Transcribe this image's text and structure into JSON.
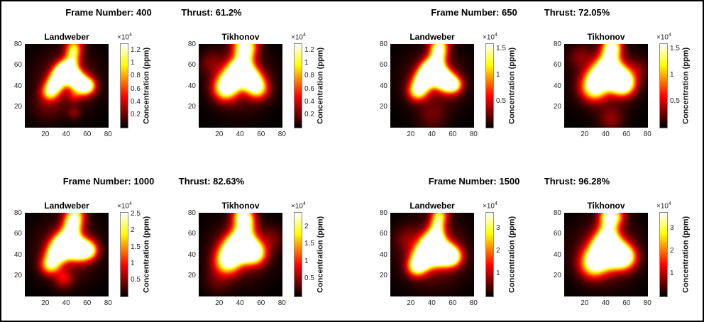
{
  "figure": {
    "background": "#ffffff",
    "border_color": "#000000",
    "tick_text_color": "#262626",
    "title_color": "#000000",
    "colorbar_edge_color": "#8a8a8a"
  },
  "chart_data": {
    "type": "heatmap",
    "colormap": "hot",
    "grid_size": 80,
    "axis_range": [
      0.5,
      80.5
    ],
    "x_ticks": [
      20,
      40,
      60,
      80
    ],
    "y_ticks": [
      20,
      40,
      60,
      80
    ],
    "colorbar_label": "Concentration (ppm)",
    "scale_prefix": "×10",
    "scale_exponent": "4",
    "panels": [
      {
        "frame_label": "Frame Number: 400",
        "thrust_label": "Thrust: 61.2%",
        "subplots": [
          {
            "title": "Landweber",
            "colorbar_ticks": [
              0.2,
              0.4,
              0.6,
              0.8,
              1,
              1.2
            ],
            "cmax": 1.3,
            "blobs": [
              [
                24,
                34,
                5.5,
                0.7
              ],
              [
                29,
                42,
                5.5,
                0.9
              ],
              [
                34,
                50,
                5.5,
                1.05
              ],
              [
                39,
                56,
                5.5,
                1.05
              ],
              [
                44,
                51,
                5.5,
                0.95
              ],
              [
                49,
                46,
                5.5,
                0.9
              ],
              [
                55,
                40,
                6,
                0.9
              ],
              [
                61,
                40,
                5,
                0.55
              ],
              [
                45,
                63,
                5,
                0.5
              ],
              [
                46,
                71,
                5,
                0.45
              ],
              [
                47,
                78,
                5.5,
                0.5
              ],
              [
                47,
                30,
                4,
                0.18
              ],
              [
                47,
                14,
                4,
                0.15
              ],
              [
                40,
                45,
                20,
                0.2
              ],
              [
                20,
                20,
                10,
                0.1
              ]
            ]
          },
          {
            "title": "Tikhonov",
            "colorbar_ticks": [
              0.2,
              0.4,
              0.6,
              0.8,
              1,
              1.2
            ],
            "cmax": 1.3,
            "blobs": [
              [
                25,
                37,
                7.5,
                0.8
              ],
              [
                31,
                45,
                7.5,
                0.95
              ],
              [
                38,
                55,
                7,
                1.05
              ],
              [
                45,
                50,
                7,
                0.95
              ],
              [
                51,
                44,
                7,
                0.85
              ],
              [
                57,
                37,
                6.5,
                0.6
              ],
              [
                43,
                64,
                6.5,
                0.5
              ],
              [
                44,
                73,
                6.5,
                0.5
              ],
              [
                41,
                80,
                7,
                0.45
              ],
              [
                48,
                79,
                6.5,
                0.4
              ],
              [
                42,
                40,
                6,
                -0.12
              ],
              [
                40,
                45,
                20,
                0.2
              ],
              [
                12,
                62,
                8,
                0.15
              ]
            ]
          }
        ]
      },
      {
        "frame_label": "Frame Number: 650",
        "thrust_label": "Thrust: 72.05%",
        "subplots": [
          {
            "title": "Landweber",
            "colorbar_ticks": [
              0.5,
              1,
              1.5
            ],
            "cmax": 1.6,
            "blobs": [
              [
                26,
                35,
                6,
                0.8
              ],
              [
                31,
                44,
                6,
                1.0
              ],
              [
                36,
                51,
                6,
                1.05
              ],
              [
                40,
                57,
                6,
                1.1
              ],
              [
                45,
                51,
                6,
                1.0
              ],
              [
                50,
                47,
                6,
                1.0
              ],
              [
                56,
                42,
                6,
                0.9
              ],
              [
                62,
                41,
                5,
                0.5
              ],
              [
                45,
                65,
                5.5,
                0.6
              ],
              [
                46,
                73,
                5.5,
                0.6
              ],
              [
                47,
                80,
                6,
                0.6
              ],
              [
                42,
                45,
                20,
                0.2
              ],
              [
                40,
                10,
                9,
                0.12
              ]
            ]
          },
          {
            "title": "Tikhonov",
            "colorbar_ticks": [
              0.5,
              1,
              1.5
            ],
            "cmax": 1.6,
            "blobs": [
              [
                28,
                38,
                8,
                0.8
              ],
              [
                34,
                47,
                8,
                1.0
              ],
              [
                41,
                56,
                7.5,
                1.0
              ],
              [
                48,
                49,
                7.5,
                1.0
              ],
              [
                53,
                45,
                7.5,
                1.0
              ],
              [
                58,
                41,
                7,
                0.65
              ],
              [
                44,
                66,
                6.5,
                0.55
              ],
              [
                45,
                75,
                6,
                0.6
              ],
              [
                46,
                80,
                6,
                0.55
              ],
              [
                43,
                40,
                6,
                -0.1
              ],
              [
                40,
                46,
                20,
                0.2
              ],
              [
                15,
                68,
                8,
                0.15
              ],
              [
                70,
                55,
                8,
                0.15
              ],
              [
                45,
                8,
                8,
                0.18
              ]
            ]
          }
        ]
      },
      {
        "frame_label": "Frame Number: 1000",
        "thrust_label": "Thrust: 82.63%",
        "subplots": [
          {
            "title": "Landweber",
            "colorbar_ticks": [
              0.5,
              1,
              1.5,
              2,
              2.5
            ],
            "cmax": 2.55,
            "blobs": [
              [
                24,
                30,
                6,
                0.7
              ],
              [
                30,
                40,
                6.5,
                0.95
              ],
              [
                36,
                49,
                7,
                1.1
              ],
              [
                42,
                50,
                6.5,
                1.05
              ],
              [
                48,
                46,
                6.5,
                0.95
              ],
              [
                55,
                45,
                7,
                0.9
              ],
              [
                62,
                44,
                5.5,
                0.55
              ],
              [
                44,
                61,
                6,
                0.75
              ],
              [
                46,
                70,
                6,
                0.7
              ],
              [
                48,
                79,
                6.5,
                0.65
              ],
              [
                37,
                17,
                6,
                0.28
              ],
              [
                40,
                44,
                20,
                0.2
              ]
            ]
          },
          {
            "title": "Tikhonov",
            "colorbar_ticks": [
              0.5,
              1,
              1.5,
              2
            ],
            "cmax": 2.4,
            "blobs": [
              [
                27,
                33,
                8,
                0.8
              ],
              [
                33,
                43,
                8,
                1.0
              ],
              [
                40,
                50,
                8,
                1.05
              ],
              [
                47,
                45,
                7.5,
                0.95
              ],
              [
                54,
                41,
                7,
                0.75
              ],
              [
                43,
                62,
                7,
                0.6
              ],
              [
                44,
                72,
                6.5,
                0.65
              ],
              [
                42,
                79,
                6.5,
                0.65
              ],
              [
                40,
                44,
                20,
                0.2
              ],
              [
                18,
                15,
                9,
                0.12
              ],
              [
                70,
                55,
                8,
                0.13
              ]
            ]
          }
        ]
      },
      {
        "frame_label": "Frame Number: 1500",
        "thrust_label": "Thrust: 96.28%",
        "subplots": [
          {
            "title": "Landweber",
            "colorbar_ticks": [
              1,
              2,
              3
            ],
            "cmax": 3.7,
            "blobs": [
              [
                25,
                28,
                6,
                0.75
              ],
              [
                31,
                36,
                7,
                1.0
              ],
              [
                38,
                44,
                8,
                1.15
              ],
              [
                46,
                42,
                7,
                1.05
              ],
              [
                53,
                40,
                7,
                1.0
              ],
              [
                60,
                38,
                6,
                0.7
              ],
              [
                41,
                52,
                6.5,
                0.9
              ],
              [
                44,
                60,
                5.5,
                0.6
              ],
              [
                45,
                69,
                5,
                0.55
              ],
              [
                47,
                78,
                5.5,
                0.65
              ],
              [
                41,
                42,
                21,
                0.24
              ],
              [
                15,
                55,
                8,
                0.12
              ]
            ]
          },
          {
            "title": "Tikhonov",
            "colorbar_ticks": [
              1,
              2,
              3
            ],
            "cmax": 3.7,
            "blobs": [
              [
                28,
                31,
                8.5,
                0.85
              ],
              [
                36,
                41,
                8.5,
                1.05
              ],
              [
                44,
                44,
                8.5,
                1.05
              ],
              [
                52,
                39,
                8,
                0.95
              ],
              [
                59,
                37,
                7,
                0.6
              ],
              [
                40,
                52,
                7,
                0.85
              ],
              [
                42,
                62,
                6.5,
                0.5
              ],
              [
                43,
                71,
                6,
                0.5
              ],
              [
                42,
                79,
                6,
                0.6
              ],
              [
                50,
                77,
                6,
                0.45
              ],
              [
                40,
                43,
                21,
                0.22
              ]
            ]
          }
        ]
      }
    ]
  }
}
